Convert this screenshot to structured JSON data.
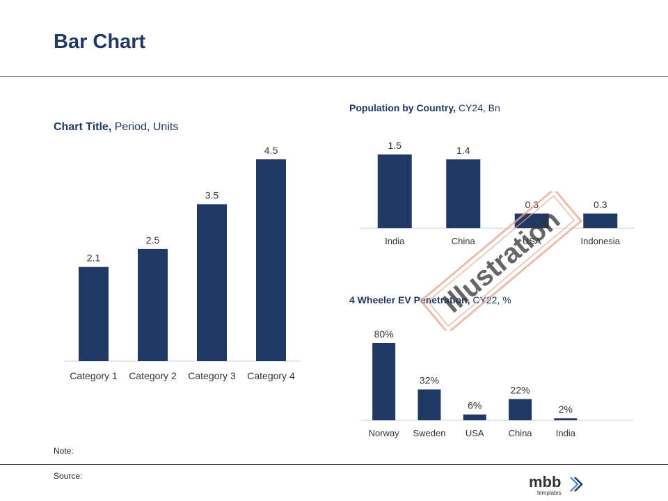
{
  "page": {
    "title": "Bar Chart",
    "note_label": "Note:",
    "source_label": "Source:",
    "stamp_text": "Illustration",
    "logo": {
      "name": "mbb",
      "sub": "templates"
    }
  },
  "colors": {
    "bar": "#1f3864",
    "title": "#1f3864",
    "stamp": "#e8a590",
    "axis": "#d0d0d0"
  },
  "chart_data": [
    {
      "type": "bar",
      "title_bold": "Chart Title,",
      "title_rest": " Period, Units",
      "categories": [
        "Category 1",
        "Category 2",
        "Category 3",
        "Category 4"
      ],
      "values": [
        2.1,
        2.5,
        3.5,
        4.5
      ],
      "labels": [
        "2.1",
        "2.5",
        "3.5",
        "4.5"
      ],
      "ylim": [
        0,
        5
      ],
      "grid": false
    },
    {
      "type": "bar",
      "title_bold": "Population by Country,",
      "title_rest": " CY24, Bn",
      "categories": [
        "India",
        "China",
        "USA",
        "Indonesia"
      ],
      "values": [
        1.5,
        1.4,
        0.3,
        0.3
      ],
      "labels": [
        "1.5",
        "1.4",
        "0.3",
        "0.3"
      ],
      "ylim": [
        0,
        1.6
      ],
      "grid": false
    },
    {
      "type": "bar",
      "title_bold": "4 Wheeler EV Penetration,",
      "title_rest": " CY22, %",
      "categories": [
        "Norway",
        "Sweden",
        "USA",
        "China",
        "India"
      ],
      "values": [
        80,
        32,
        6,
        22,
        2
      ],
      "labels": [
        "80%",
        "32%",
        "6%",
        "22%",
        "2%"
      ],
      "ylim": [
        0,
        85
      ],
      "grid": false
    }
  ]
}
